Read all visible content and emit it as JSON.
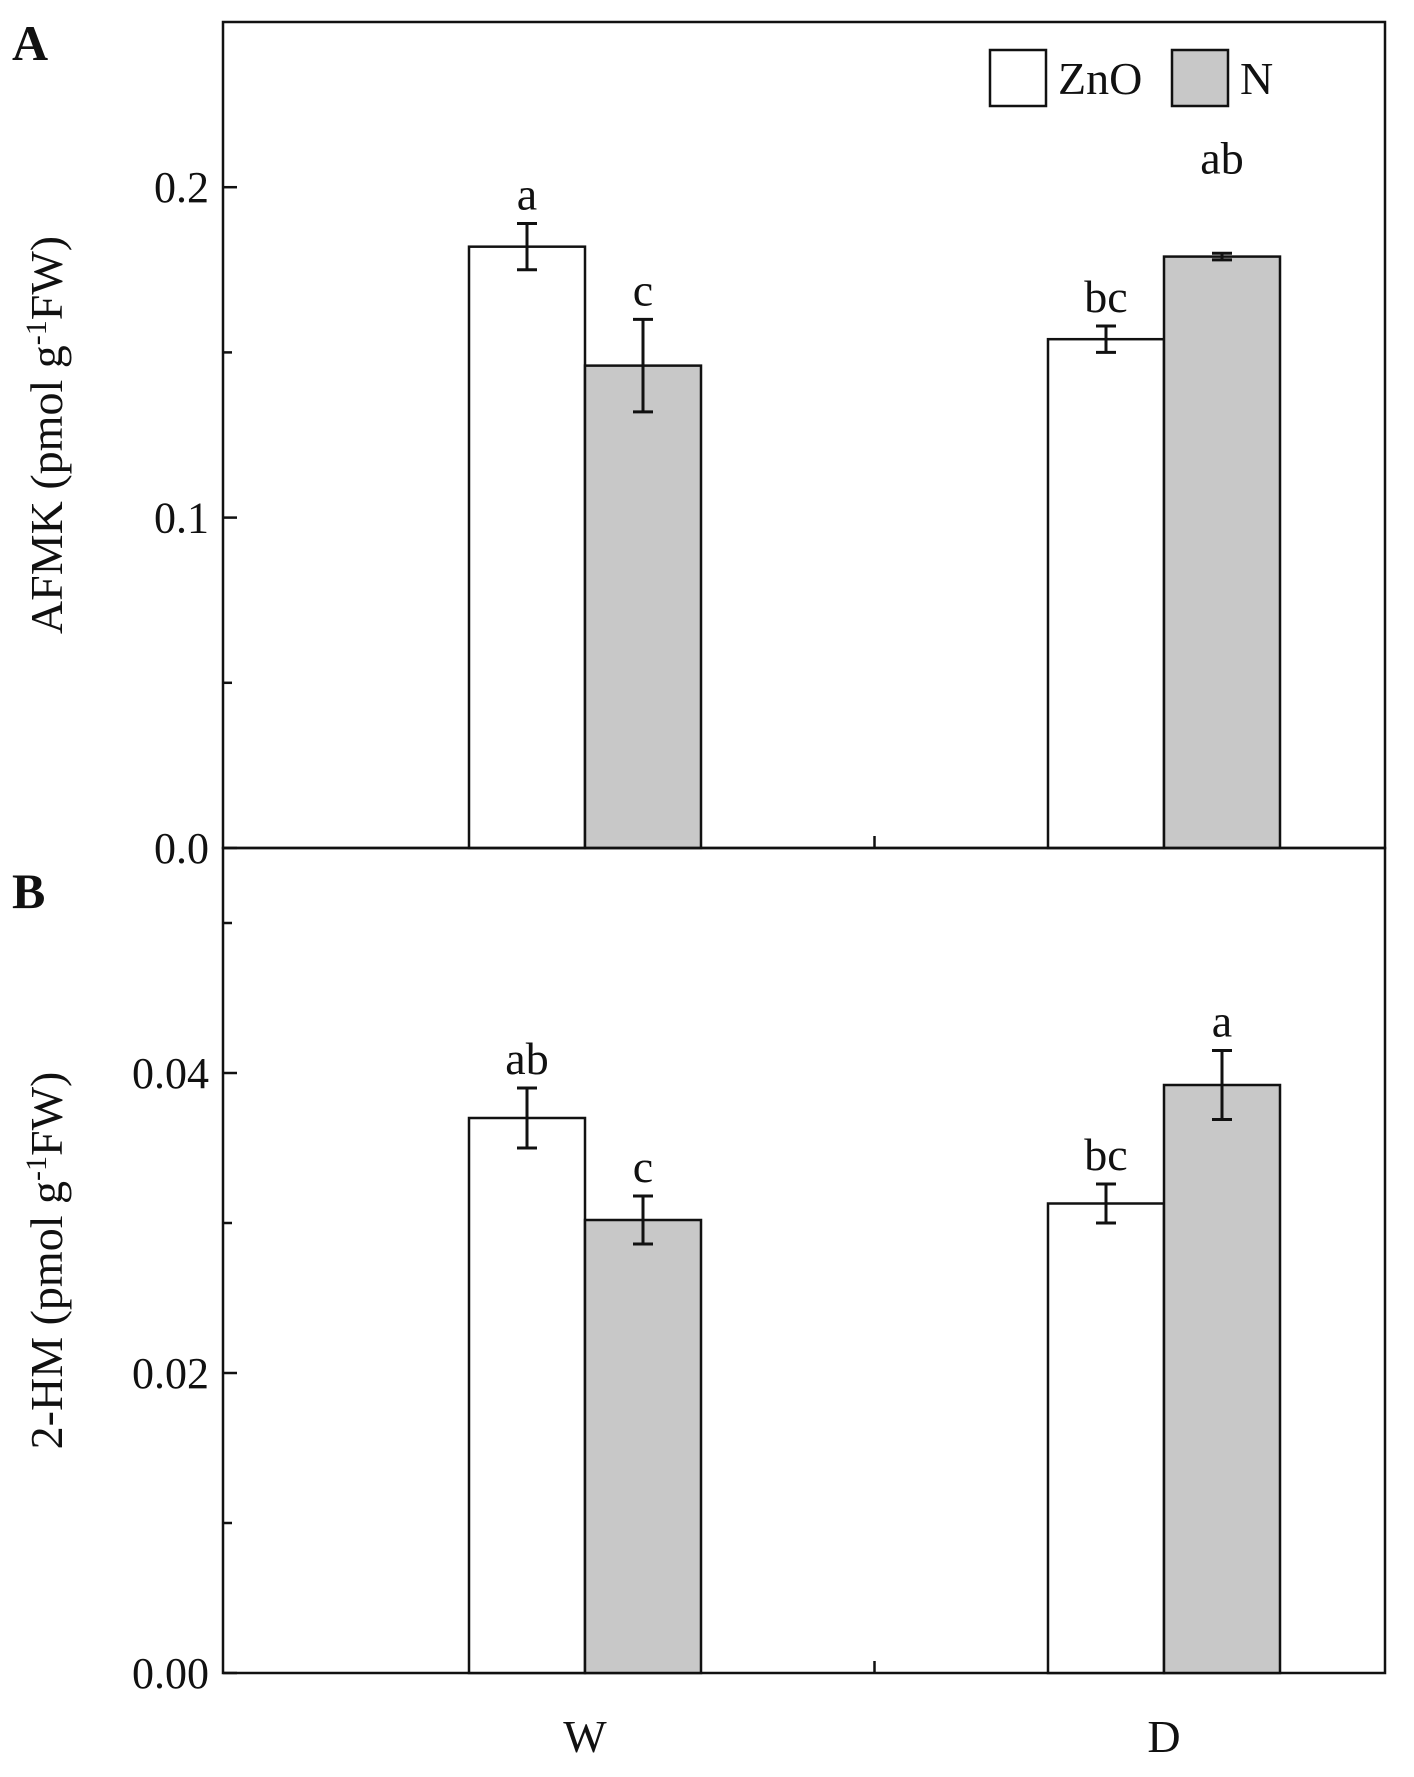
{
  "chart_data": [
    {
      "type": "bar",
      "panel": "A",
      "ylabel_main": "AFMK (pmol g",
      "ylabel_sup": "-1",
      "ylabel_end": "FW)",
      "xlabel": "",
      "ylim": [
        0,
        0.25
      ],
      "yticks": [
        0.0,
        0.1,
        0.2
      ],
      "ytick_labels": [
        "0.0",
        "0.1",
        "0.2"
      ],
      "yminor": [
        0.05,
        0.15
      ],
      "categories": [
        "W",
        "D"
      ],
      "series": [
        {
          "name": "ZnO",
          "values": [
            0.182,
            0.154
          ],
          "errors": [
            0.007,
            0.004
          ],
          "letters": [
            "a",
            "bc"
          ]
        },
        {
          "name": "N",
          "values": [
            0.146,
            0.179
          ],
          "errors": [
            0.014,
            0.001
          ],
          "letters": [
            "c",
            "ab"
          ]
        }
      ],
      "legend": {
        "position": "top-right",
        "entries": [
          "ZnO",
          "N"
        ]
      }
    },
    {
      "type": "bar",
      "panel": "B",
      "ylabel_main": "2-HM (pmol g",
      "ylabel_sup": "-1",
      "ylabel_end": "FW)",
      "xlabel": "",
      "ylim": [
        0,
        0.055
      ],
      "yticks": [
        0.0,
        0.02,
        0.04
      ],
      "ytick_labels": [
        "0.00",
        "0.02",
        "0.04"
      ],
      "yminor": [
        0.01,
        0.03,
        0.05
      ],
      "categories": [
        "W",
        "D"
      ],
      "series": [
        {
          "name": "ZnO",
          "values": [
            0.037,
            0.0313
          ],
          "errors": [
            0.002,
            0.0013
          ],
          "letters": [
            "ab",
            "bc"
          ]
        },
        {
          "name": "N",
          "values": [
            0.0302,
            0.0392
          ],
          "errors": [
            0.0016,
            0.0023
          ],
          "letters": [
            "c",
            "a"
          ]
        }
      ]
    }
  ],
  "colors": {
    "ZnO": "#ffffff",
    "N": "#c8c8c8",
    "stroke": "#111111"
  }
}
